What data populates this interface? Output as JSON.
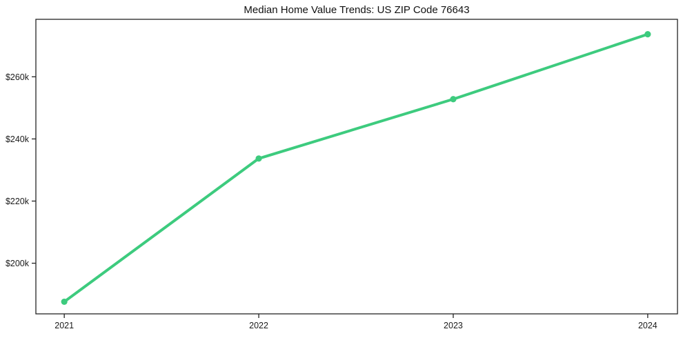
{
  "chart_data": {
    "type": "line",
    "title": "Median Home Value Trends: US ZIP Code 76643",
    "xlabel": "",
    "ylabel": "",
    "x": [
      2021,
      2022,
      2023,
      2024
    ],
    "x_tick_labels": [
      "2021",
      "2022",
      "2023",
      "2024"
    ],
    "series": [
      {
        "name": "Median Home Value",
        "values": [
          187600,
          233700,
          252800,
          273700
        ]
      }
    ],
    "y_ticks": [
      {
        "value": 200000,
        "label": "$200k"
      },
      {
        "value": 220000,
        "label": "$220k"
      },
      {
        "value": 240000,
        "label": "$240k"
      },
      {
        "value": 260000,
        "label": "$260k"
      }
    ],
    "xlim": [
      2020.854,
      2024.153
    ],
    "ylim": [
      183700,
      278500
    ],
    "grid": false,
    "legend_position": null,
    "line_color": "#3dcb7e",
    "marker_color": "#3dcb7e",
    "spine_color": "#222222",
    "text_color": "#1a1a1a",
    "background_color": "#ffffff"
  }
}
